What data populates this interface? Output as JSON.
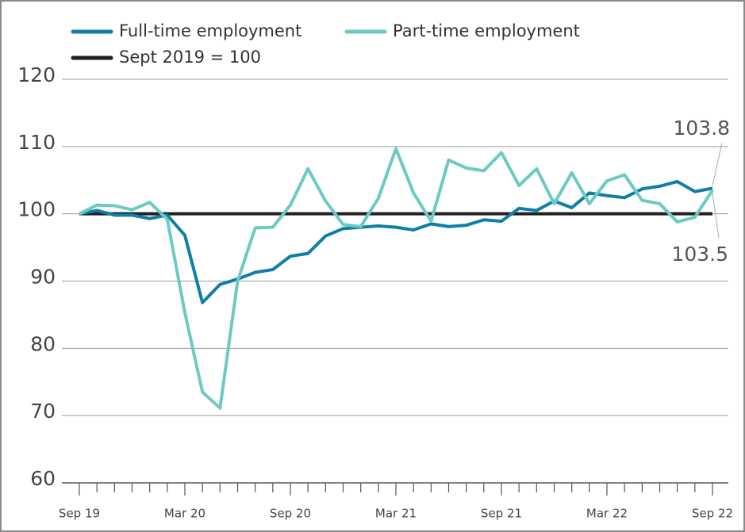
{
  "chart_data": {
    "type": "line",
    "categories": [
      "Sep 19",
      null,
      null,
      null,
      null,
      null,
      "Mar 20",
      null,
      null,
      null,
      null,
      null,
      "Sep 20",
      null,
      null,
      null,
      null,
      null,
      "Mar 21",
      null,
      null,
      null,
      null,
      null,
      "Sep 21",
      null,
      null,
      null,
      null,
      null,
      "Mar 22",
      null,
      null,
      null,
      null,
      null,
      "Sep 22"
    ],
    "series": [
      {
        "name": "Full-time employment",
        "color": "#0f7fa6",
        "values": [
          100,
          100.5,
          99.8,
          99.8,
          99.3,
          99.8,
          96.8,
          86.8,
          89.5,
          90.3,
          91.3,
          91.7,
          93.7,
          94.1,
          96.7,
          97.8,
          98.0,
          98.2,
          98.0,
          97.6,
          98.5,
          98.1,
          98.3,
          99.1,
          98.9,
          100.8,
          100.5,
          101.9,
          100.9,
          103.1,
          102.7,
          102.4,
          103.7,
          104.1,
          104.8,
          103.3,
          103.8
        ]
      },
      {
        "name": "Part-time employment",
        "color": "#6ccac4",
        "values": [
          100,
          101.3,
          101.2,
          100.6,
          101.7,
          99.2,
          85.3,
          73.5,
          71.1,
          90.0,
          97.9,
          98.0,
          101.3,
          106.7,
          101.9,
          98.4,
          98.1,
          102.3,
          109.7,
          103.1,
          98.9,
          108.0,
          106.8,
          106.4,
          109.1,
          104.2,
          106.7,
          101.5,
          106.1,
          101.5,
          104.9,
          105.8,
          102.0,
          101.5,
          98.8,
          99.5,
          103.5
        ]
      }
    ],
    "reference": {
      "name": "Sept 2019 = 100",
      "value": 100,
      "color": "#231f20"
    },
    "annotations": [
      "103.8",
      "103.5"
    ],
    "ylim": [
      60,
      120
    ],
    "yticks": [
      60,
      70,
      80,
      90,
      100,
      110,
      120
    ],
    "grid": true
  }
}
